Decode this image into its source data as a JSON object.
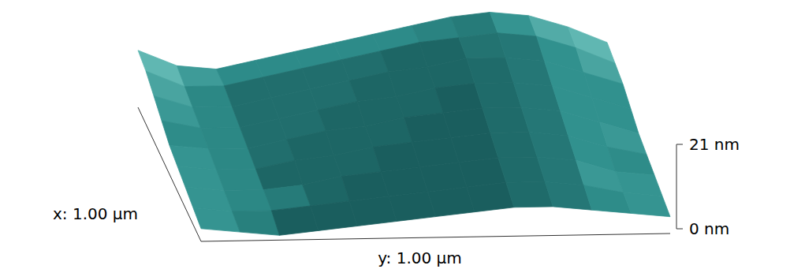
{
  "chart_data": {
    "type": "surface",
    "xlabel": "x: 1.00 µm",
    "ylabel": "y: 1.00 µm",
    "xlim": [
      0,
      1
    ],
    "ylim": [
      0,
      1
    ],
    "zlim": [
      0,
      21
    ],
    "zticks": [
      {
        "value": 21,
        "label": "21 nm"
      },
      {
        "value": 0,
        "label": "0 nm"
      }
    ],
    "x": [
      0,
      0.125,
      0.25,
      0.375,
      0.5,
      0.625,
      0.75,
      0.875,
      1
    ],
    "y": [
      0,
      0.083,
      0.167,
      0.25,
      0.333,
      0.417,
      0.5,
      0.583,
      0.667,
      0.75,
      0.833,
      0.917,
      1
    ],
    "color": "#2f8f8c",
    "z": [
      [
        2,
        1,
        0,
        1,
        2,
        3,
        4,
        5,
        6,
        6,
        5,
        4,
        3
      ],
      [
        3,
        2,
        2,
        3,
        4,
        5,
        6,
        7,
        8,
        8,
        7,
        5,
        4
      ],
      [
        4,
        3,
        3,
        4,
        6,
        7,
        8,
        9,
        10,
        10,
        9,
        6,
        5
      ],
      [
        5,
        4,
        4,
        6,
        7,
        9,
        10,
        11,
        12,
        12,
        11,
        8,
        6
      ],
      [
        6,
        5,
        5,
        7,
        9,
        10,
        12,
        13,
        14,
        14,
        13,
        10,
        7
      ],
      [
        8,
        6,
        6,
        8,
        10,
        12,
        13,
        15,
        16,
        16,
        15,
        12,
        9
      ],
      [
        10,
        7,
        7,
        9,
        11,
        13,
        15,
        16,
        18,
        18,
        17,
        14,
        11
      ],
      [
        12,
        8,
        8,
        10,
        12,
        14,
        16,
        18,
        19,
        20,
        19,
        16,
        12
      ],
      [
        13,
        9,
        8,
        10,
        12,
        14,
        16,
        18,
        20,
        21,
        20,
        17,
        13
      ]
    ]
  }
}
